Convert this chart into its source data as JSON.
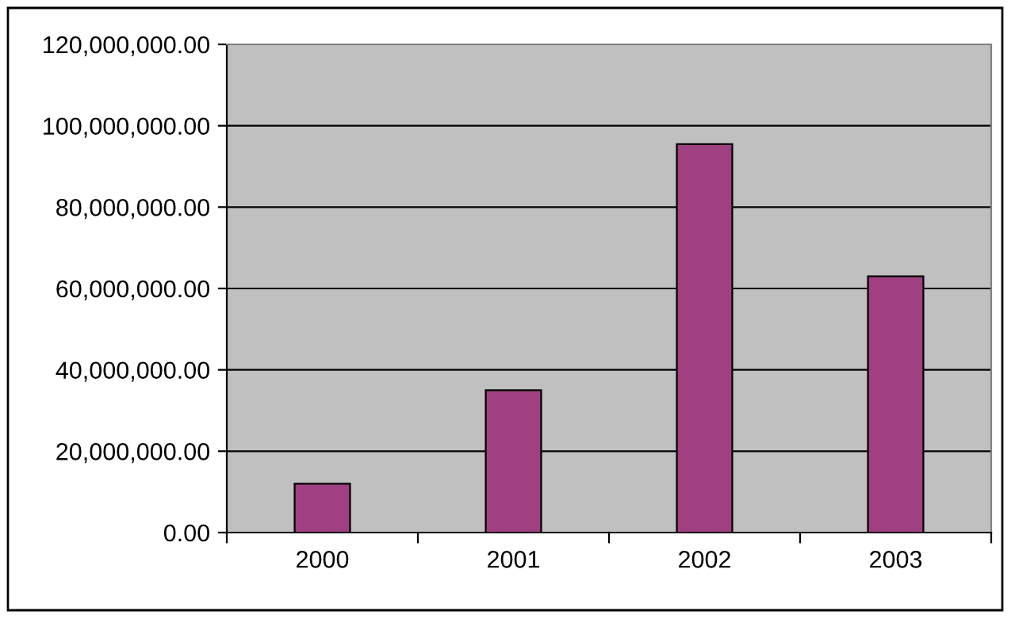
{
  "chart_data": {
    "type": "bar",
    "categories": [
      "2000",
      "2001",
      "2002",
      "2003"
    ],
    "values": [
      12000000,
      35000000,
      95500000,
      63000000
    ],
    "color": "#a04080",
    "ylim": [
      0,
      120000000
    ],
    "yticks": [
      {
        "value": 0,
        "label": "0.00"
      },
      {
        "value": 20000000,
        "label": "20,000,000.00"
      },
      {
        "value": 40000000,
        "label": "40,000,000.00"
      },
      {
        "value": 60000000,
        "label": "60,000,000.00"
      },
      {
        "value": 80000000,
        "label": "80,000,000.00"
      },
      {
        "value": 100000000,
        "label": "100,000,000.00"
      },
      {
        "value": 120000000,
        "label": "120,000,000.00"
      }
    ],
    "grid": "y"
  }
}
